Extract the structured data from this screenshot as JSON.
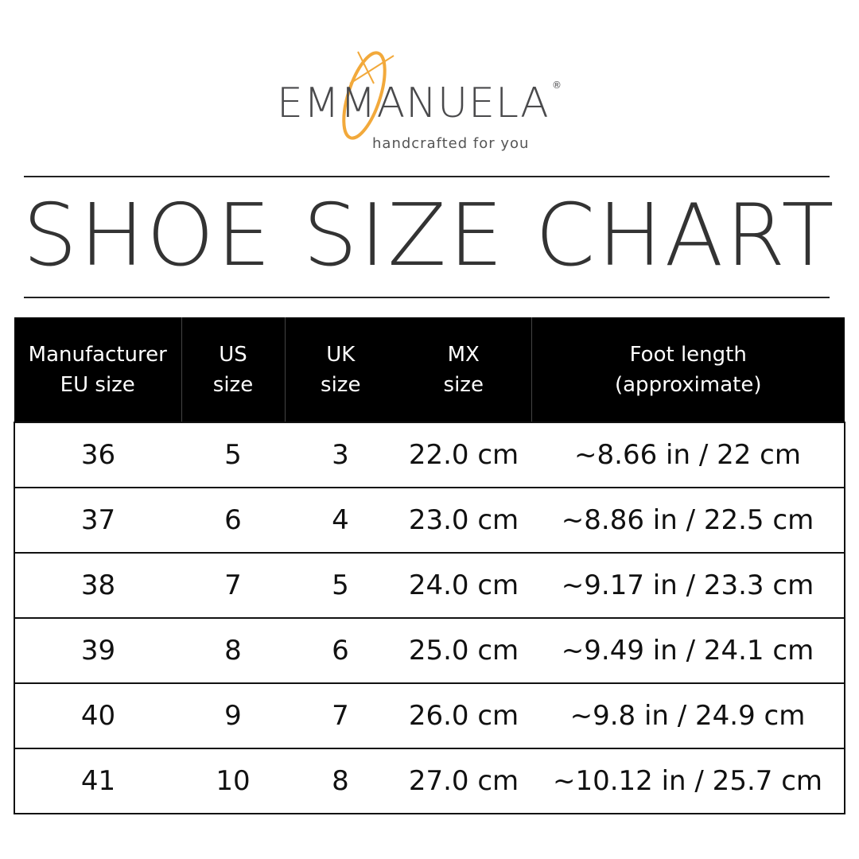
{
  "logo": {
    "brand": "EMMANUELA",
    "registered": "®",
    "tagline": "handcrafted for you",
    "accent_color": "#f2a93b"
  },
  "title": "SHOE SIZE CHART",
  "table": {
    "headers": [
      [
        "Manufacturer",
        "EU size"
      ],
      [
        "US",
        "size"
      ],
      [
        "UK",
        "size"
      ],
      [
        "MX",
        "size"
      ],
      [
        "Foot length",
        "(approximate)"
      ]
    ],
    "rows": [
      [
        "36",
        "5",
        "3",
        "22.0 cm",
        "~8.66 in / 22 cm"
      ],
      [
        "37",
        "6",
        "4",
        "23.0 cm",
        "~8.86 in / 22.5 cm"
      ],
      [
        "38",
        "7",
        "5",
        "24.0 cm",
        "~9.17 in / 23.3 cm"
      ],
      [
        "39",
        "8",
        "6",
        "25.0 cm",
        "~9.49 in / 24.1 cm"
      ],
      [
        "40",
        "9",
        "7",
        "26.0 cm",
        "~9.8 in / 24.9 cm"
      ],
      [
        "41",
        "10",
        "8",
        "27.0 cm",
        "~10.12 in / 25.7 cm"
      ]
    ]
  }
}
